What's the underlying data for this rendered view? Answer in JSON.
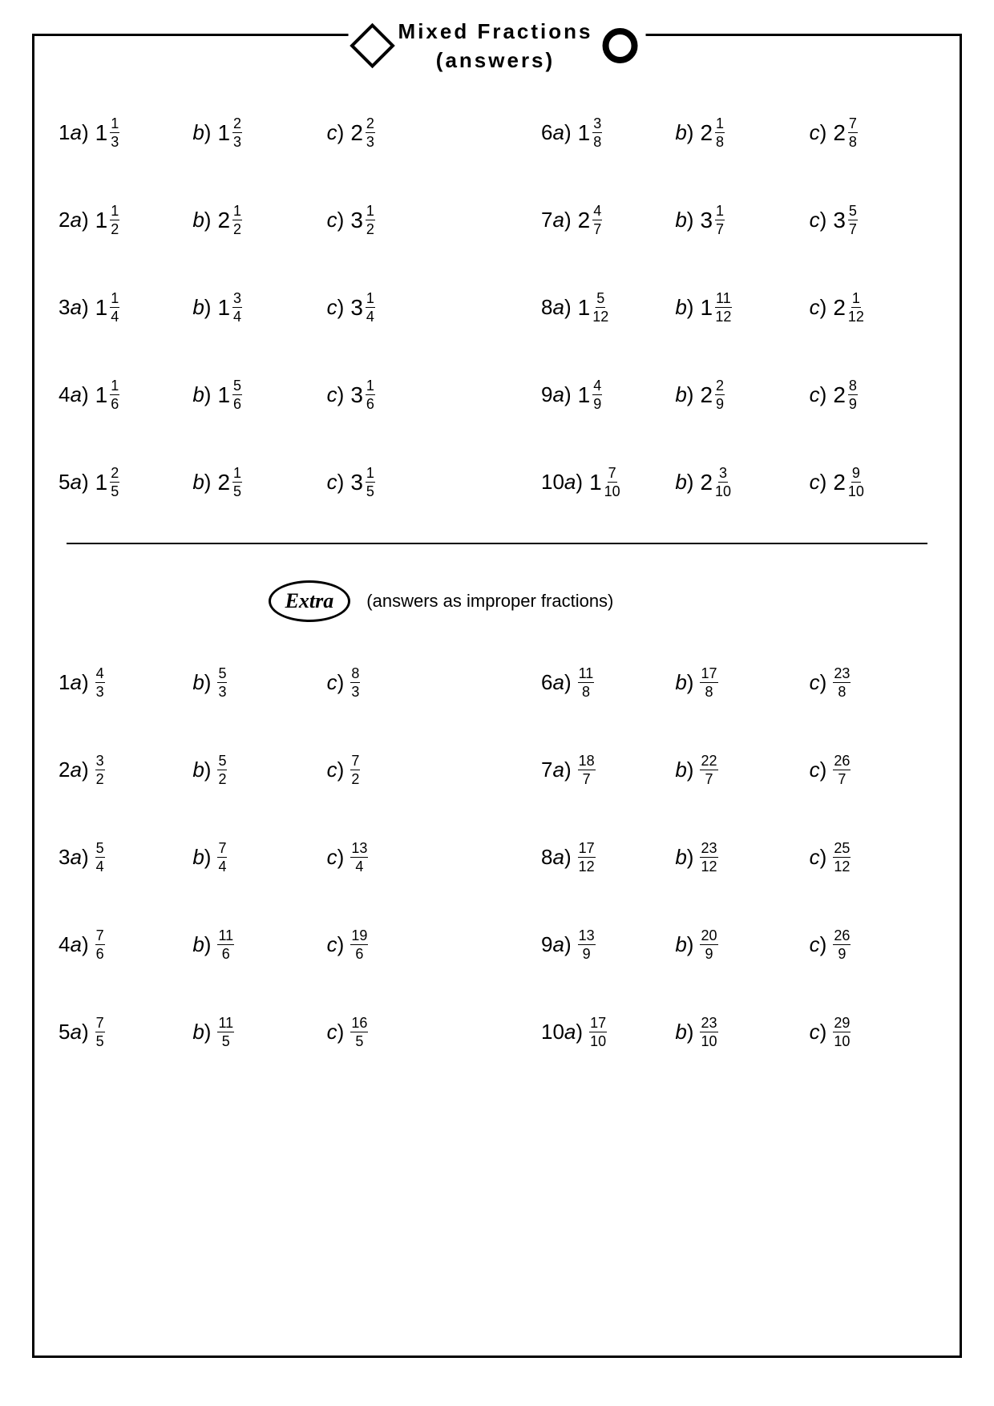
{
  "title_line1": "Mixed Fractions",
  "title_line2": "(answers)",
  "extra_label": "Extra",
  "extra_sub": "(answers as improper fractions)",
  "colors": {
    "fg": "#000000",
    "bg": "#ffffff"
  },
  "fonts": {
    "body_size": 26,
    "frac_size": 18,
    "title_size": 26,
    "title_weight": "bold",
    "title_spacing": 3
  },
  "mixed_left": [
    {
      "n": 1,
      "parts": [
        {
          "l": "a",
          "w": 1,
          "num": 1,
          "den": 3
        },
        {
          "l": "b",
          "w": 1,
          "num": 2,
          "den": 3
        },
        {
          "l": "c",
          "w": 2,
          "num": 2,
          "den": 3
        }
      ]
    },
    {
      "n": 2,
      "parts": [
        {
          "l": "a",
          "w": 1,
          "num": 1,
          "den": 2
        },
        {
          "l": "b",
          "w": 2,
          "num": 1,
          "den": 2
        },
        {
          "l": "c",
          "w": 3,
          "num": 1,
          "den": 2
        }
      ]
    },
    {
      "n": 3,
      "parts": [
        {
          "l": "a",
          "w": 1,
          "num": 1,
          "den": 4
        },
        {
          "l": "b",
          "w": 1,
          "num": 3,
          "den": 4
        },
        {
          "l": "c",
          "w": 3,
          "num": 1,
          "den": 4
        }
      ]
    },
    {
      "n": 4,
      "parts": [
        {
          "l": "a",
          "w": 1,
          "num": 1,
          "den": 6
        },
        {
          "l": "b",
          "w": 1,
          "num": 5,
          "den": 6
        },
        {
          "l": "c",
          "w": 3,
          "num": 1,
          "den": 6
        }
      ]
    },
    {
      "n": 5,
      "parts": [
        {
          "l": "a",
          "w": 1,
          "num": 2,
          "den": 5
        },
        {
          "l": "b",
          "w": 2,
          "num": 1,
          "den": 5
        },
        {
          "l": "c",
          "w": 3,
          "num": 1,
          "den": 5
        }
      ]
    }
  ],
  "mixed_right": [
    {
      "n": 6,
      "parts": [
        {
          "l": "a",
          "w": 1,
          "num": 3,
          "den": 8
        },
        {
          "l": "b",
          "w": 2,
          "num": 1,
          "den": 8
        },
        {
          "l": "c",
          "w": 2,
          "num": 7,
          "den": 8
        }
      ]
    },
    {
      "n": 7,
      "parts": [
        {
          "l": "a",
          "w": 2,
          "num": 4,
          "den": 7
        },
        {
          "l": "b",
          "w": 3,
          "num": 1,
          "den": 7
        },
        {
          "l": "c",
          "w": 3,
          "num": 5,
          "den": 7
        }
      ]
    },
    {
      "n": 8,
      "parts": [
        {
          "l": "a",
          "w": 1,
          "num": 5,
          "den": 12
        },
        {
          "l": "b",
          "w": 1,
          "num": 11,
          "den": 12
        },
        {
          "l": "c",
          "w": 2,
          "num": 1,
          "den": 12
        }
      ]
    },
    {
      "n": 9,
      "parts": [
        {
          "l": "a",
          "w": 1,
          "num": 4,
          "den": 9
        },
        {
          "l": "b",
          "w": 2,
          "num": 2,
          "den": 9
        },
        {
          "l": "c",
          "w": 2,
          "num": 8,
          "den": 9
        }
      ]
    },
    {
      "n": 10,
      "parts": [
        {
          "l": "a",
          "w": 1,
          "num": 7,
          "den": 10
        },
        {
          "l": "b",
          "w": 2,
          "num": 3,
          "den": 10
        },
        {
          "l": "c",
          "w": 2,
          "num": 9,
          "den": 10
        }
      ]
    }
  ],
  "improper_left": [
    {
      "n": 1,
      "parts": [
        {
          "l": "a",
          "num": 4,
          "den": 3
        },
        {
          "l": "b",
          "num": 5,
          "den": 3
        },
        {
          "l": "c",
          "num": 8,
          "den": 3
        }
      ]
    },
    {
      "n": 2,
      "parts": [
        {
          "l": "a",
          "num": 3,
          "den": 2
        },
        {
          "l": "b",
          "num": 5,
          "den": 2
        },
        {
          "l": "c",
          "num": 7,
          "den": 2
        }
      ]
    },
    {
      "n": 3,
      "parts": [
        {
          "l": "a",
          "num": 5,
          "den": 4
        },
        {
          "l": "b",
          "num": 7,
          "den": 4
        },
        {
          "l": "c",
          "num": 13,
          "den": 4
        }
      ]
    },
    {
      "n": 4,
      "parts": [
        {
          "l": "a",
          "num": 7,
          "den": 6
        },
        {
          "l": "b",
          "num": 11,
          "den": 6
        },
        {
          "l": "c",
          "num": 19,
          "den": 6
        }
      ]
    },
    {
      "n": 5,
      "parts": [
        {
          "l": "a",
          "num": 7,
          "den": 5
        },
        {
          "l": "b",
          "num": 11,
          "den": 5
        },
        {
          "l": "c",
          "num": 16,
          "den": 5
        }
      ]
    }
  ],
  "improper_right": [
    {
      "n": 6,
      "parts": [
        {
          "l": "a",
          "num": 11,
          "den": 8
        },
        {
          "l": "b",
          "num": 17,
          "den": 8
        },
        {
          "l": "c",
          "num": 23,
          "den": 8
        }
      ]
    },
    {
      "n": 7,
      "parts": [
        {
          "l": "a",
          "num": 18,
          "den": 7
        },
        {
          "l": "b",
          "num": 22,
          "den": 7
        },
        {
          "l": "c",
          "num": 26,
          "den": 7
        }
      ]
    },
    {
      "n": 8,
      "parts": [
        {
          "l": "a",
          "num": 17,
          "den": 12
        },
        {
          "l": "b",
          "num": 23,
          "den": 12
        },
        {
          "l": "c",
          "num": 25,
          "den": 12
        }
      ]
    },
    {
      "n": 9,
      "parts": [
        {
          "l": "a",
          "num": 13,
          "den": 9
        },
        {
          "l": "b",
          "num": 20,
          "den": 9
        },
        {
          "l": "c",
          "num": 26,
          "den": 9
        }
      ]
    },
    {
      "n": 10,
      "parts": [
        {
          "l": "a",
          "num": 17,
          "den": 10
        },
        {
          "l": "b",
          "num": 23,
          "den": 10
        },
        {
          "l": "c",
          "num": 29,
          "den": 10
        }
      ]
    }
  ]
}
